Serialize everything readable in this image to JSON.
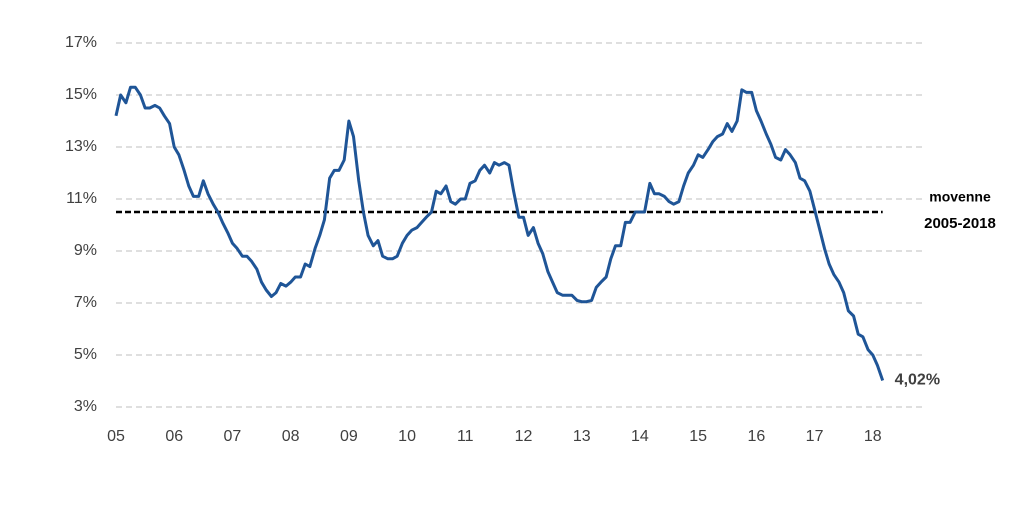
{
  "chart_data": {
    "type": "line",
    "x": [
      2005.0,
      2005.08,
      2005.17,
      2005.25,
      2005.33,
      2005.42,
      2005.5,
      2005.58,
      2005.67,
      2005.75,
      2005.83,
      2005.92,
      2006.0,
      2006.08,
      2006.17,
      2006.25,
      2006.33,
      2006.42,
      2006.5,
      2006.58,
      2006.67,
      2006.75,
      2006.83,
      2006.92,
      2007.0,
      2007.08,
      2007.17,
      2007.25,
      2007.33,
      2007.42,
      2007.5,
      2007.58,
      2007.67,
      2007.75,
      2007.83,
      2007.92,
      2008.0,
      2008.08,
      2008.17,
      2008.25,
      2008.33,
      2008.42,
      2008.5,
      2008.58,
      2008.67,
      2008.75,
      2008.83,
      2008.92,
      2009.0,
      2009.08,
      2009.17,
      2009.25,
      2009.33,
      2009.42,
      2009.5,
      2009.58,
      2009.67,
      2009.75,
      2009.83,
      2009.92,
      2010.0,
      2010.08,
      2010.17,
      2010.25,
      2010.33,
      2010.42,
      2010.5,
      2010.58,
      2010.67,
      2010.75,
      2010.83,
      2010.92,
      2011.0,
      2011.08,
      2011.17,
      2011.25,
      2011.33,
      2011.42,
      2011.5,
      2011.58,
      2011.67,
      2011.75,
      2011.83,
      2011.92,
      2012.0,
      2012.08,
      2012.17,
      2012.25,
      2012.33,
      2012.42,
      2012.5,
      2012.58,
      2012.67,
      2012.75,
      2012.83,
      2012.92,
      2013.0,
      2013.08,
      2013.17,
      2013.25,
      2013.33,
      2013.42,
      2013.5,
      2013.58,
      2013.67,
      2013.75,
      2013.83,
      2013.92,
      2014.0,
      2014.08,
      2014.17,
      2014.25,
      2014.33,
      2014.42,
      2014.5,
      2014.58,
      2014.67,
      2014.75,
      2014.83,
      2014.92,
      2015.0,
      2015.08,
      2015.17,
      2015.25,
      2015.33,
      2015.42,
      2015.5,
      2015.58,
      2015.67,
      2015.75,
      2015.83,
      2015.92,
      2016.0,
      2016.08,
      2016.17,
      2016.25,
      2016.33,
      2016.42,
      2016.5,
      2016.58,
      2016.67,
      2016.75,
      2016.83,
      2016.92,
      2017.0,
      2017.08,
      2017.17,
      2017.25,
      2017.33,
      2017.42,
      2017.5,
      2017.58,
      2017.67,
      2017.75,
      2017.83,
      2017.92,
      2018.0,
      2018.08,
      2018.17
    ],
    "series": [
      {
        "color": "#1f5597",
        "values": [
          14.2,
          15.0,
          14.7,
          15.3,
          15.3,
          15.0,
          14.5,
          14.5,
          14.6,
          14.5,
          14.2,
          13.9,
          13.0,
          12.7,
          12.1,
          11.5,
          11.1,
          11.1,
          11.7,
          11.2,
          10.8,
          10.5,
          10.1,
          9.7,
          9.3,
          9.1,
          8.8,
          8.8,
          8.6,
          8.3,
          7.8,
          7.5,
          7.25,
          7.4,
          7.75,
          7.65,
          7.8,
          8.0,
          8.0,
          8.5,
          8.4,
          9.1,
          9.6,
          10.2,
          11.8,
          12.1,
          12.1,
          12.5,
          14.0,
          13.4,
          11.7,
          10.5,
          9.6,
          9.2,
          9.4,
          8.8,
          8.7,
          8.7,
          8.8,
          9.3,
          9.6,
          9.8,
          9.9,
          10.1,
          10.3,
          10.5,
          11.3,
          11.2,
          11.5,
          10.9,
          10.8,
          11.0,
          11.0,
          11.6,
          11.7,
          12.1,
          12.3,
          12.0,
          12.4,
          12.3,
          12.4,
          12.3,
          11.3,
          10.3,
          10.3,
          9.6,
          9.9,
          9.3,
          8.9,
          8.2,
          7.8,
          7.4,
          7.3,
          7.3,
          7.3,
          7.1,
          7.05,
          7.05,
          7.1,
          7.6,
          7.8,
          8.0,
          8.7,
          9.2,
          9.2,
          10.1,
          10.1,
          10.5,
          10.5,
          10.5,
          11.6,
          11.2,
          11.2,
          11.1,
          10.9,
          10.8,
          10.9,
          11.5,
          12.0,
          12.3,
          12.7,
          12.6,
          12.9,
          13.2,
          13.4,
          13.5,
          13.9,
          13.6,
          14.0,
          15.2,
          15.1,
          15.1,
          14.4,
          14.0,
          13.5,
          13.1,
          12.6,
          12.5,
          12.9,
          12.7,
          12.4,
          11.8,
          11.7,
          11.3,
          10.6,
          9.9,
          9.1,
          8.5,
          8.1,
          7.8,
          7.4,
          6.7,
          6.5,
          5.8,
          5.7,
          5.2,
          5.0,
          4.6,
          4.02
        ]
      }
    ],
    "mean": 10.5,
    "mean_label": [
      "movenne",
      "2005-2018"
    ],
    "last_label": "4,02%",
    "xlim": [
      2005,
      2019
    ],
    "xticks": [
      {
        "value": 2005,
        "label": "05"
      },
      {
        "value": 2006,
        "label": "06"
      },
      {
        "value": 2007,
        "label": "07"
      },
      {
        "value": 2008,
        "label": "08"
      },
      {
        "value": 2009,
        "label": "09"
      },
      {
        "value": 2010,
        "label": "10"
      },
      {
        "value": 2011,
        "label": "11"
      },
      {
        "value": 2012,
        "label": "12"
      },
      {
        "value": 2013,
        "label": "13"
      },
      {
        "value": 2014,
        "label": "14"
      },
      {
        "value": 2015,
        "label": "15"
      },
      {
        "value": 2016,
        "label": "16"
      },
      {
        "value": 2017,
        "label": "17"
      },
      {
        "value": 2018,
        "label": "18"
      }
    ],
    "ylim": [
      3,
      17
    ],
    "yticks": [
      {
        "value": 3,
        "label": "3%"
      },
      {
        "value": 5,
        "label": "5%"
      },
      {
        "value": 7,
        "label": "7%"
      },
      {
        "value": 9,
        "label": "9%"
      },
      {
        "value": 11,
        "label": "11%"
      },
      {
        "value": 13,
        "label": "13%"
      },
      {
        "value": 15,
        "label": "15%"
      },
      {
        "value": 17,
        "label": "17%"
      }
    ],
    "grid": true
  }
}
